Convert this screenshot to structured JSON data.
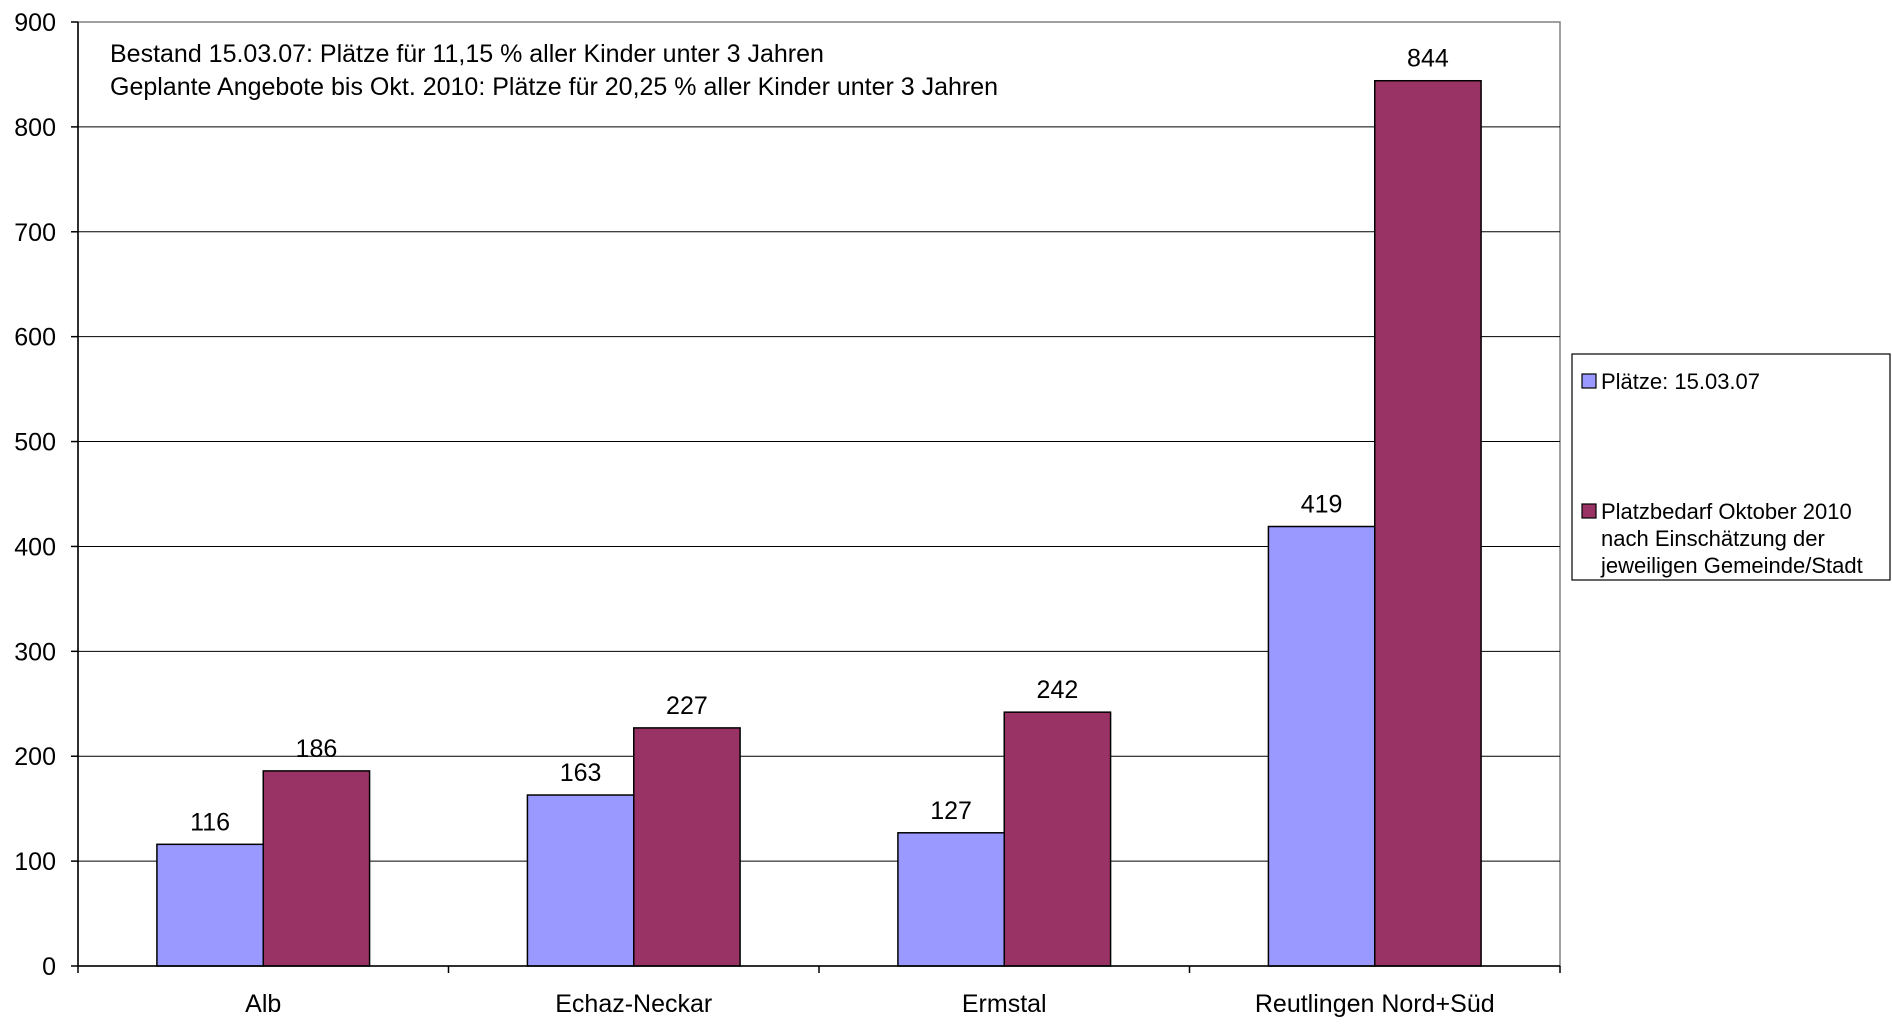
{
  "chart_data": {
    "type": "bar",
    "categories": [
      "Alb",
      "Echaz-Neckar",
      "Ermstal",
      "Reutlingen Nord+Süd"
    ],
    "series": [
      {
        "name": "Plätze: 15.03.07",
        "legend_lines": [
          "Plätze: 15.03.07"
        ],
        "values": [
          116,
          163,
          127,
          419
        ],
        "color": "#9999FF"
      },
      {
        "name": "Platzbedarf Oktober 2010 nach Einschätzung der jeweiligen Gemeinde/Stadt",
        "legend_lines": [
          "Platzbedarf Oktober 2010",
          "nach Einschätzung der",
          "jeweiligen Gemeinde/Stadt"
        ],
        "values": [
          186,
          227,
          242,
          844
        ],
        "color": "#993366"
      }
    ],
    "annotations": [
      "Bestand 15.03.07: Plätze für 11,15 % aller Kinder unter 3 Jahren",
      "Geplante Angebote bis Okt. 2010: Plätze für 20,25 % aller Kinder unter 3 Jahren"
    ],
    "yticks": [
      "0",
      "100",
      "200",
      "300",
      "400",
      "500",
      "600",
      "700",
      "800",
      "900"
    ],
    "ylim": [
      0,
      900
    ],
    "grid": true,
    "legend_position": "right",
    "data_labels": true
  }
}
